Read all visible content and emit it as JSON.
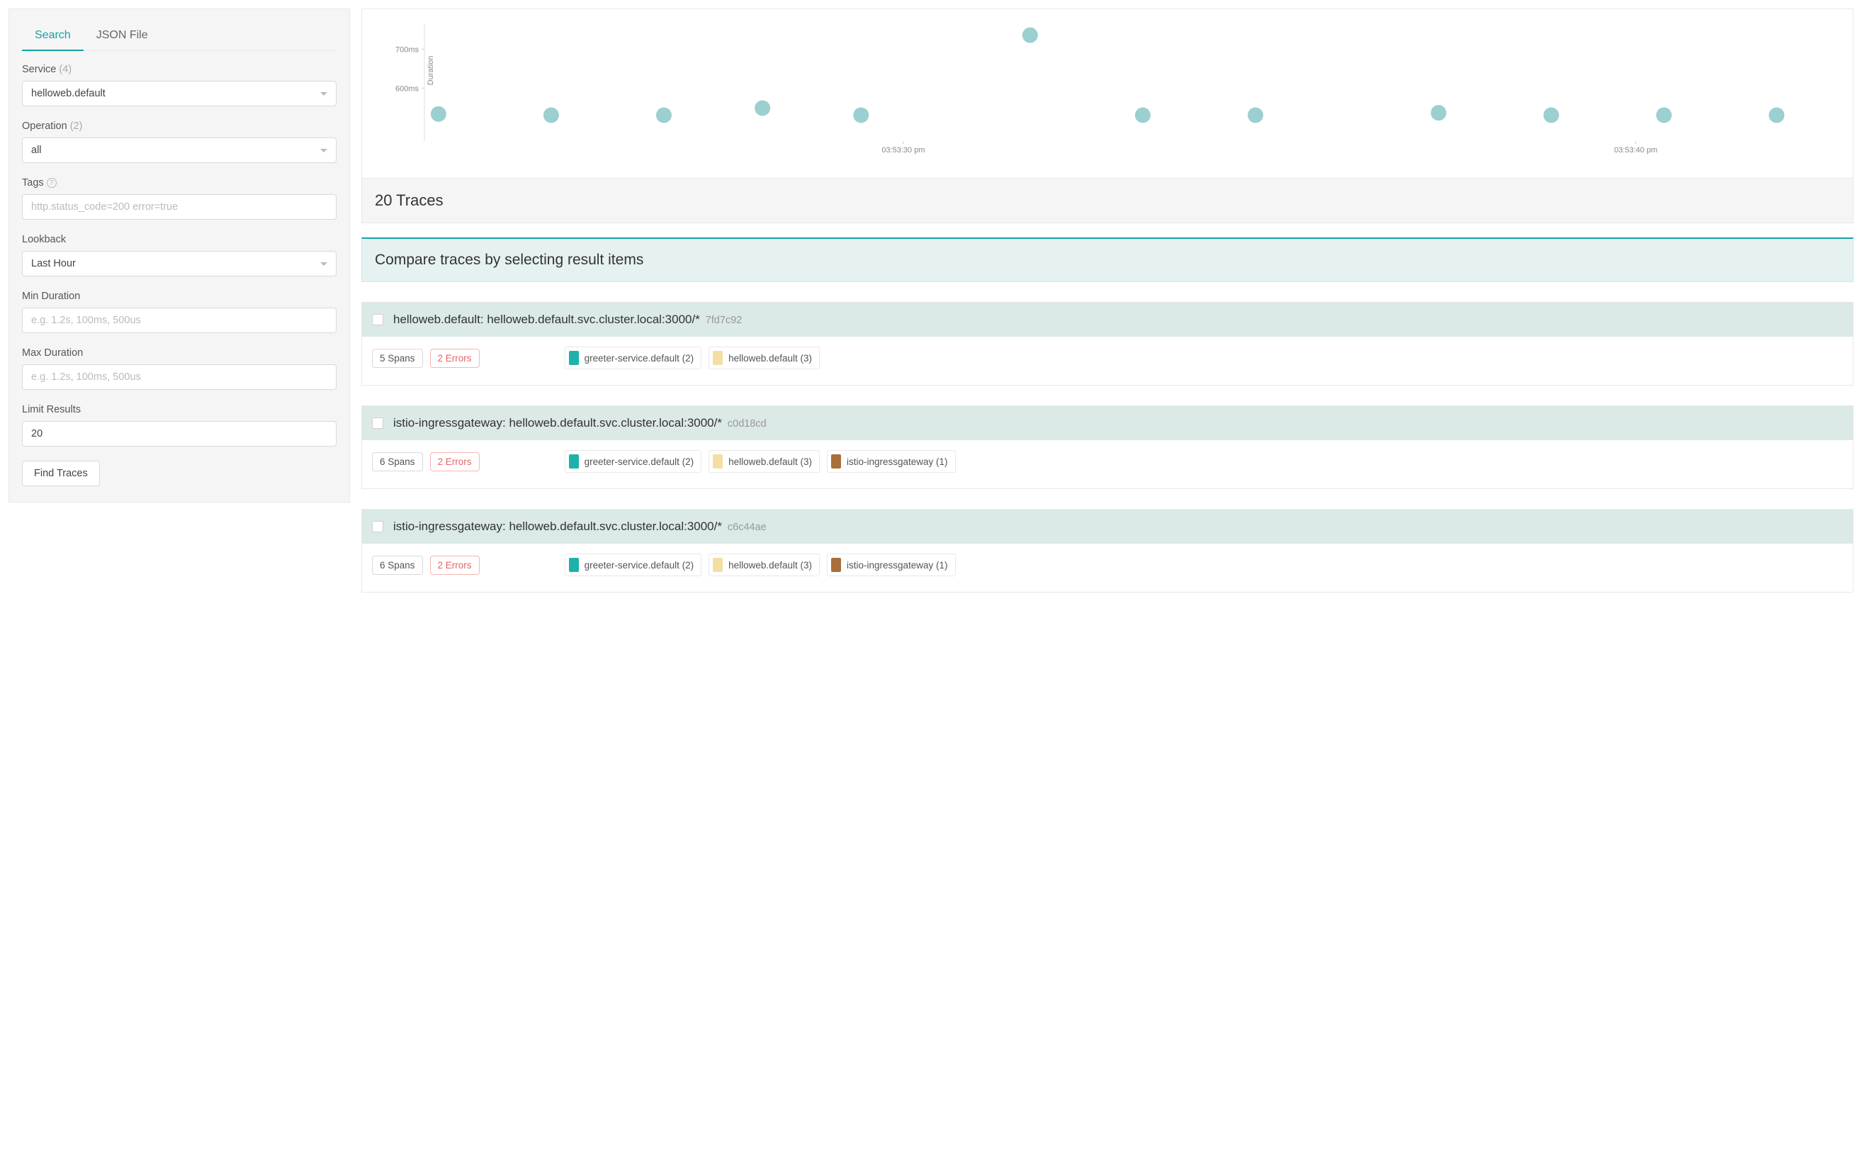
{
  "sidebar": {
    "tabs": {
      "search": "Search",
      "json_file": "JSON File"
    },
    "service": {
      "label": "Service",
      "count": "(4)",
      "value": "helloweb.default"
    },
    "operation": {
      "label": "Operation",
      "count": "(2)",
      "value": "all"
    },
    "tags": {
      "label": "Tags",
      "placeholder": "http.status_code=200 error=true"
    },
    "lookback": {
      "label": "Lookback",
      "value": "Last Hour"
    },
    "min_duration": {
      "label": "Min Duration",
      "placeholder": "e.g. 1.2s, 100ms, 500us"
    },
    "max_duration": {
      "label": "Max Duration",
      "placeholder": "e.g. 1.2s, 100ms, 500us"
    },
    "limit_results": {
      "label": "Limit Results",
      "value": "20"
    },
    "find_button": "Find Traces"
  },
  "chart": {
    "type": "scatter",
    "y_axis_title": "Duration",
    "y_ticks": [
      "700ms",
      "600ms"
    ],
    "x_ticks": [
      {
        "pos": 0.34,
        "label": "03:53:30 pm"
      },
      {
        "pos": 0.86,
        "label": "03:53:40 pm"
      }
    ],
    "point_color": "#9ccfcf",
    "point_radius": 11,
    "bg": "#ffffff",
    "points": [
      {
        "x": 0.01,
        "y": 0.23
      },
      {
        "x": 0.09,
        "y": 0.22
      },
      {
        "x": 0.17,
        "y": 0.22
      },
      {
        "x": 0.24,
        "y": 0.28
      },
      {
        "x": 0.31,
        "y": 0.22
      },
      {
        "x": 0.43,
        "y": 0.9
      },
      {
        "x": 0.51,
        "y": 0.22
      },
      {
        "x": 0.59,
        "y": 0.22
      },
      {
        "x": 0.72,
        "y": 0.24
      },
      {
        "x": 0.8,
        "y": 0.22
      },
      {
        "x": 0.88,
        "y": 0.22
      },
      {
        "x": 0.96,
        "y": 0.22
      }
    ]
  },
  "results": {
    "header": "20 Traces",
    "compare_banner": "Compare traces by selecting result items",
    "items": [
      {
        "title": "helloweb.default: helloweb.default.svc.cluster.local:3000/*",
        "id": "7fd7c92",
        "spans": "5 Spans",
        "errors": "2 Errors",
        "services": [
          {
            "color": "#1fb2aa",
            "label": "greeter-service.default (2)"
          },
          {
            "color": "#f3dea3",
            "label": "helloweb.default (3)"
          }
        ]
      },
      {
        "title": "istio-ingressgateway: helloweb.default.svc.cluster.local:3000/*",
        "id": "c0d18cd",
        "spans": "6 Spans",
        "errors": "2 Errors",
        "services": [
          {
            "color": "#1fb2aa",
            "label": "greeter-service.default (2)"
          },
          {
            "color": "#f3dea3",
            "label": "helloweb.default (3)"
          },
          {
            "color": "#a86f3a",
            "label": "istio-ingressgateway (1)"
          }
        ]
      },
      {
        "title": "istio-ingressgateway: helloweb.default.svc.cluster.local:3000/*",
        "id": "c6c44ae",
        "spans": "6 Spans",
        "errors": "2 Errors",
        "services": [
          {
            "color": "#1fb2aa",
            "label": "greeter-service.default (2)"
          },
          {
            "color": "#f3dea3",
            "label": "helloweb.default (3)"
          },
          {
            "color": "#a86f3a",
            "label": "istio-ingressgateway (1)"
          }
        ]
      }
    ]
  }
}
